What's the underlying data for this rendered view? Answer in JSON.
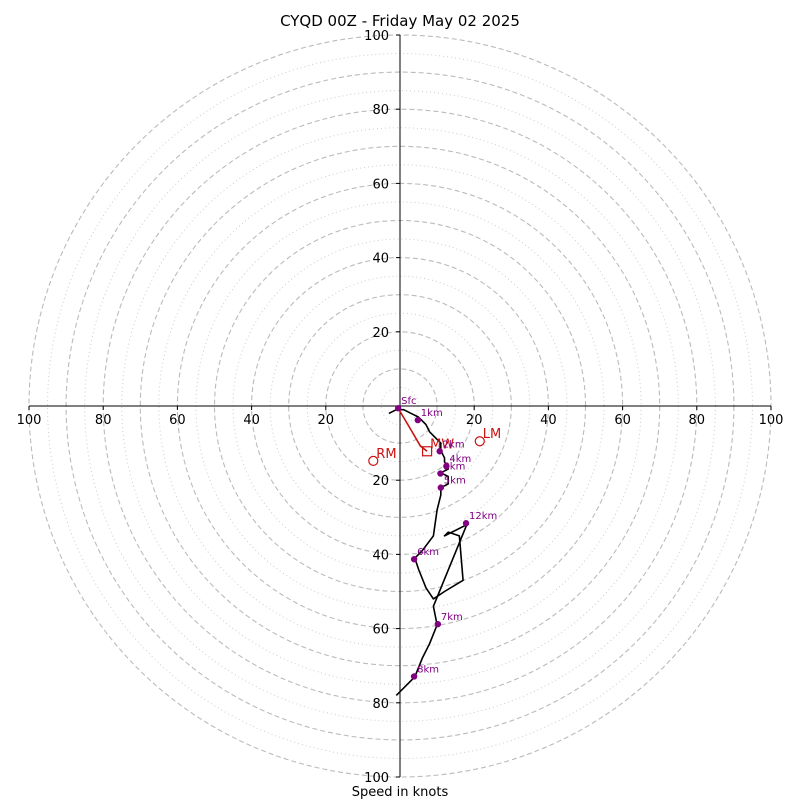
{
  "chart_data": {
    "type": "hodograph",
    "title": "CYQD 00Z - Friday May 02 2025",
    "xlabel": "Speed in knots",
    "range": [
      -100,
      100
    ],
    "ring_labels": [
      20,
      40,
      60,
      80,
      100
    ],
    "x_ticks": [
      -100,
      -80,
      -60,
      -40,
      -20,
      20,
      40,
      60,
      80,
      100
    ],
    "x_tick_labels": [
      "100",
      "80",
      "60",
      "40",
      "20",
      "20",
      "40",
      "60",
      "80",
      "100"
    ],
    "y_ticks": [
      20,
      40,
      60,
      80,
      100
    ],
    "y_tick_labels": [
      "20",
      "40",
      "60",
      "80",
      "100"
    ],
    "y_ticks_down": [
      -20,
      -40,
      -60,
      -80,
      -100
    ],
    "y_tick_labels_down": [
      "20",
      "40",
      "60",
      "80",
      "100"
    ],
    "dashed_rings": [
      10,
      20,
      30,
      40,
      50,
      60,
      70,
      80,
      90,
      100
    ],
    "dotted_rings": [
      5,
      15,
      25,
      35,
      45,
      55,
      65,
      75,
      85,
      95
    ],
    "grid": true,
    "colors": {
      "hodograph": "#000000",
      "height_markers": "#800080",
      "storm_motion": "#cc1111",
      "grid": "#bbbbbb"
    },
    "hodograph": [
      [
        -3,
        -2
      ],
      [
        -1,
        -1
      ],
      [
        1,
        -1
      ],
      [
        3,
        -2
      ],
      [
        5,
        -3
      ],
      [
        7,
        -5
      ],
      [
        8,
        -7
      ],
      [
        10,
        -9
      ],
      [
        11,
        -10
      ],
      [
        11,
        -11
      ],
      [
        11,
        -12
      ],
      [
        12,
        -14
      ],
      [
        12,
        -15
      ],
      [
        13,
        -17
      ],
      [
        11,
        -18
      ],
      [
        13,
        -19
      ],
      [
        13,
        -21
      ],
      [
        11,
        -22
      ],
      [
        11,
        -24
      ],
      [
        10,
        -28
      ],
      [
        9,
        -35
      ],
      [
        6,
        -39
      ],
      [
        4,
        -41
      ],
      [
        5,
        -44
      ],
      [
        7,
        -49
      ],
      [
        9,
        -52
      ],
      [
        12,
        -50
      ],
      [
        17,
        -47
      ],
      [
        16,
        -35
      ],
      [
        13,
        -34
      ],
      [
        12,
        -35
      ],
      [
        18,
        -32
      ],
      [
        9,
        -54
      ],
      [
        10,
        -59
      ],
      [
        8,
        -64
      ],
      [
        6,
        -68
      ],
      [
        4,
        -73
      ],
      [
        -1,
        -78
      ]
    ],
    "height_markers": [
      {
        "label": "Sfc",
        "u": -0.5,
        "v": -0.6
      },
      {
        "label": "1km",
        "u": 4.8,
        "v": -3.8
      },
      {
        "label": "2km",
        "u": 10.7,
        "v": -12.2
      },
      {
        "label": "4km",
        "u": 12.5,
        "v": -16.2
      },
      {
        "label": "3km",
        "u": 10.9,
        "v": -18.2
      },
      {
        "label": "5km",
        "u": 11.0,
        "v": -22.0
      },
      {
        "label": "12km",
        "u": 17.8,
        "v": -31.6
      },
      {
        "label": "6km",
        "u": 3.8,
        "v": -41.3
      },
      {
        "label": "7km",
        "u": 10.2,
        "v": -58.8
      },
      {
        "label": "8km",
        "u": 3.8,
        "v": -72.9
      }
    ],
    "storm_motion": {
      "mean_wind": {
        "label": "MW",
        "u": 7.3,
        "v": -12.2
      },
      "left_mover": {
        "label": "LM",
        "u": 21.5,
        "v": -9.5
      },
      "right_mover": {
        "label": "RM",
        "u": -7.2,
        "v": -14.8
      },
      "red_line": [
        [
          -0.5,
          -0.6
        ],
        [
          3.0,
          -6.5
        ],
        [
          5.5,
          -10.8
        ],
        [
          7.3,
          -12.2
        ]
      ]
    }
  }
}
